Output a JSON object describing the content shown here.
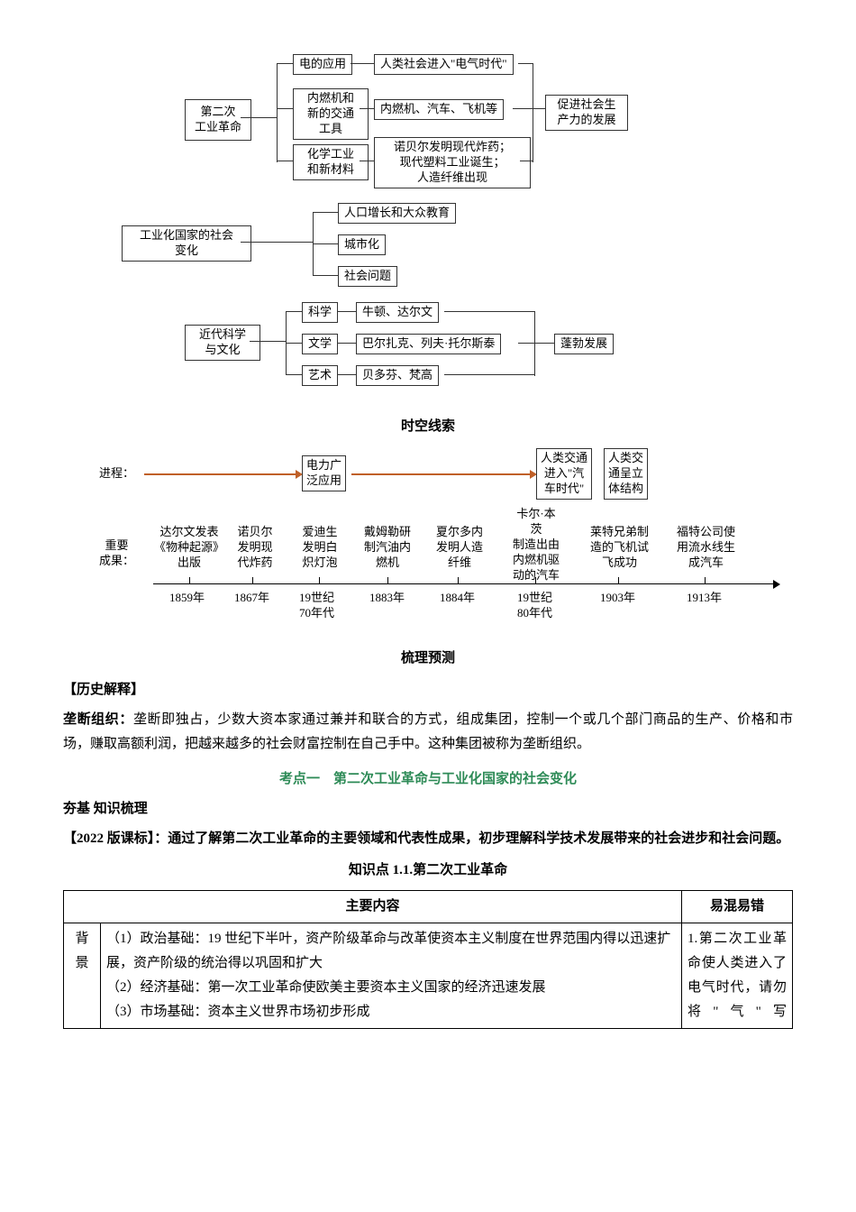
{
  "diagram": {
    "group1_root": "第二次\n工业革命",
    "g1_a": "电的应用",
    "g1_a_out": "人类社会进入\"电气时代\"",
    "g1_b": "内燃机和\n新的交通\n工具",
    "g1_b_out": "内燃机、汽车、飞机等",
    "g1_b_far": "促进社会生\n产力的发展",
    "g1_c": "化学工业\n和新材料",
    "g1_c_out": "诺贝尔发明现代炸药；\n现代塑料工业诞生；\n人造纤维出现",
    "group2_root": "工业化国家的社会\n变化",
    "g2_a": "人口增长和大众教育",
    "g2_b": "城市化",
    "g2_c": "社会问题",
    "group3_root": "近代科学\n与文化",
    "g3_a": "科学",
    "g3_a_out": "牛顿、达尔文",
    "g3_b": "文学",
    "g3_b_out": "巴尔扎克、列夫·托尔斯泰",
    "g3_c": "艺术",
    "g3_c_out": "贝多芬、梵高",
    "g3_far": "蓬勃发展"
  },
  "timeline_heading": "时空线索",
  "timeline": {
    "row1_label": "进程：",
    "proc_box1": "电力广\n泛应用",
    "proc_box2": "人类交通\n进入\"汽\n车时代\"",
    "proc_box3": "人类交\n通呈立\n体结构",
    "row2_label": "重要\n成果：",
    "events": [
      {
        "text": "达尔文发表\n《物种起源》\n出版",
        "year": "1859年"
      },
      {
        "text": "诺贝尔\n发明现\n代炸药",
        "year": "1867年"
      },
      {
        "text": "爱迪生\n发明白\n炽灯泡",
        "year": "19世纪\n70年代"
      },
      {
        "text": "戴姆勒研\n制汽油内\n燃机",
        "year": "1883年"
      },
      {
        "text": "夏尔多内\n发明人造\n纤维",
        "year": "1884年"
      },
      {
        "text": "卡尔·本\n茨\n制造出由\n内燃机驱\n动的汽车",
        "year": "19世纪\n80年代"
      },
      {
        "text": "莱特兄弟制\n造的飞机试\n飞成功",
        "year": "1903年"
      },
      {
        "text": "福特公司使\n用流水线生\n成汽车",
        "year": "1913年"
      }
    ]
  },
  "shuli_heading": "梳理预测",
  "history_header": "【历史解释】",
  "longduan_label": "垄断组织：",
  "longduan_text": "垄断即独占，少数大资本家通过兼并和联合的方式，组成集团，控制一个或几个部门商品的生产、价格和市场，赚取高额利润，把越来越多的社会财富控制在自己手中。这种集团被称为垄断组织。",
  "kaodian1": "考点一　第二次工业革命与工业化国家的社会变化",
  "hangji": "夯基 知识梳理",
  "kebiao_label": "【2022 版课标】：",
  "kebiao_text": "通过了解第二次工业革命的主要领域和代表性成果，初步理解科学技术发展带来的社会进步和社会问题。",
  "knowledge_point": "知识点 1.1.第二次工业革命",
  "table": {
    "col_main": "主要内容",
    "col_err": "易混易错",
    "row1_label": "背景",
    "row1_content": "（1）政治基础：19 世纪下半叶，资产阶级革命与改革使资本主义制度在世界范围内得以迅速扩展，资产阶级的统治得以巩固和扩大\n（2）经济基础：第一次工业革命使欧美主要资本主义国家的经济迅速发展\n（3）市场基础：资本主义世界市场初步形成",
    "row1_err": "1.第二次工业革命使人类进入了电气时代，请勿将\"气\"写"
  },
  "colors": {
    "text": "#000000",
    "green": "#2e8b57",
    "arrow": "#c06028",
    "bg": "#ffffff",
    "border": "#333333"
  }
}
